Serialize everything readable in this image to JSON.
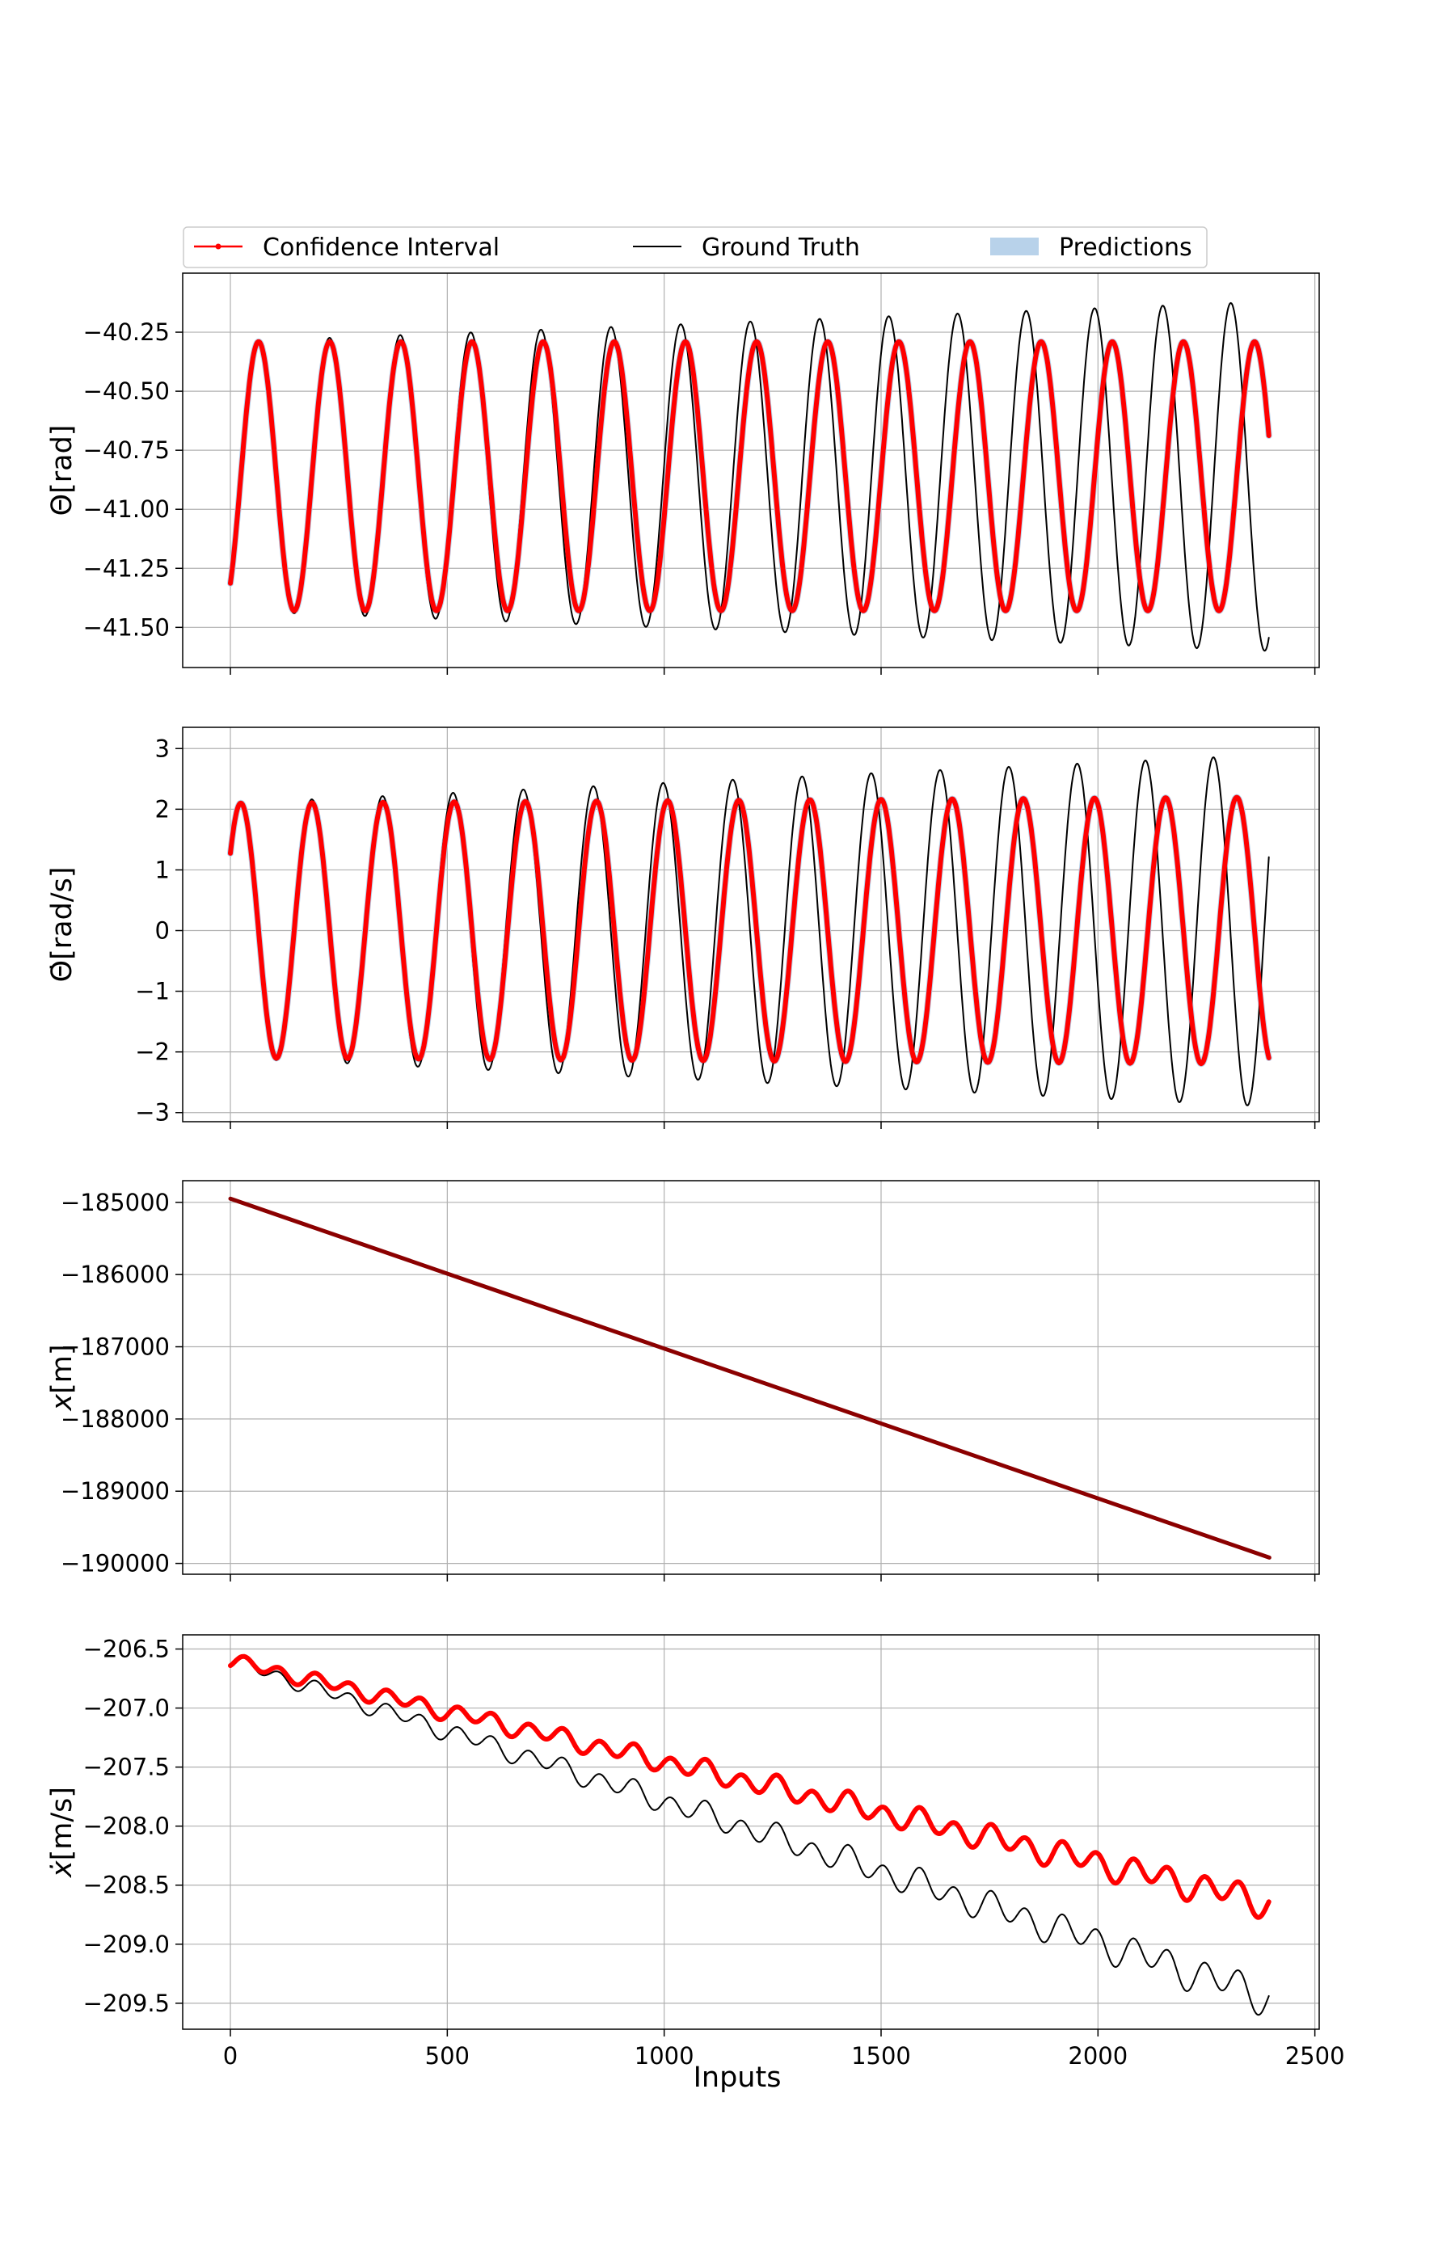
{
  "chart_data": {
    "type": "line",
    "legend": {
      "placement": "top",
      "entries": [
        {
          "label": "Confidence Interval",
          "color": "#ff0000"
        },
        {
          "label": "Ground Truth",
          "color": "#000000"
        },
        {
          "label": "Predictions",
          "color": "#b8d2ea"
        }
      ]
    },
    "xlabel": "Inputs",
    "xlim": [
      -110,
      2510
    ],
    "xticks": [
      0,
      500,
      1000,
      1500,
      2000,
      2500
    ],
    "xtick_labels": [
      "0",
      "500",
      "1000",
      "1500",
      "2000",
      "2500"
    ],
    "grid": true,
    "panels": [
      {
        "id": "theta",
        "ylabel_main": "Θ",
        "ylabel_unit": "[rad]",
        "ylim": [
          -41.67,
          -40.0
        ],
        "yticks": [
          -40.25,
          -40.5,
          -40.75,
          -41.0,
          -41.25,
          -41.5
        ],
        "ytick_labels": [
          "−40.25",
          "−40.50",
          "−40.75",
          "−41.00",
          "−41.25",
          "−41.50"
        ],
        "series": [
          {
            "role": "ground-truth",
            "color": "#000000",
            "model": "sine",
            "x_range": [
              0,
              2395
            ],
            "mean": -40.86,
            "period": 164,
            "phase": 24,
            "amp_start": 0.57,
            "amp_end": 0.74,
            "mean_drift": 0.0,
            "period_gt_end": 156
          },
          {
            "role": "confidence-interval",
            "color": "#ff0000",
            "model": "sine",
            "x_range": [
              0,
              2395
            ],
            "mean": -40.86,
            "period": 164,
            "phase": 24,
            "amp_start": 0.57,
            "amp_end": 0.57,
            "mean_drift": 0.0
          },
          {
            "role": "prediction",
            "color": "#b8d2ea",
            "model": "sine",
            "x_range": [
              0,
              2395
            ],
            "mean": -40.86,
            "period": 164,
            "phase": 24,
            "amp_start": 0.57,
            "amp_end": 0.57,
            "mean_drift": 0.0
          }
        ]
      },
      {
        "id": "theta-dot",
        "ylabel_main": "Θ̇",
        "ylabel_unit": "[rad/s]",
        "ylim": [
          -3.15,
          3.35
        ],
        "yticks": [
          3,
          2,
          1,
          0,
          -1,
          -2,
          -3
        ],
        "ytick_labels": [
          "3",
          "2",
          "1",
          "0",
          "−1",
          "−2",
          "−3"
        ],
        "series": [
          {
            "role": "ground-truth",
            "color": "#000000",
            "model": "sine",
            "x_range": [
              0,
              2395
            ],
            "mean": 0.0,
            "period": 164,
            "phase": -17,
            "amp_start": 2.1,
            "amp_end": 2.9,
            "mean_drift": 0.0,
            "period_gt_end": 156
          },
          {
            "role": "confidence-interval",
            "color": "#ff0000",
            "model": "sine",
            "x_range": [
              0,
              2395
            ],
            "mean": 0.0,
            "period": 164,
            "phase": -17,
            "amp_start": 2.1,
            "amp_end": 2.2,
            "mean_drift": 0.0
          },
          {
            "role": "prediction",
            "color": "#b8d2ea",
            "model": "sine",
            "x_range": [
              0,
              2395
            ],
            "mean": 0.0,
            "period": 164,
            "phase": -17,
            "amp_start": 2.1,
            "amp_end": 2.2,
            "mean_drift": 0.0
          }
        ]
      },
      {
        "id": "x",
        "ylabel_main": "x",
        "ylabel_unit": "[m]",
        "ylim": [
          -190150,
          -184700
        ],
        "yticks": [
          -185000,
          -186000,
          -187000,
          -188000,
          -189000,
          -190000
        ],
        "ytick_labels": [
          "−185000",
          "−186000",
          "−187000",
          "−188000",
          "−189000",
          "−190000"
        ],
        "series": [
          {
            "role": "ground-truth",
            "color": "#000000",
            "model": "line",
            "x": [
              0,
              2395
            ],
            "y": [
              -184950,
              -189920
            ]
          },
          {
            "role": "confidence-interval",
            "color": "#8b0000",
            "model": "line",
            "x": [
              0,
              2395
            ],
            "y": [
              -184950,
              -189920
            ]
          }
        ]
      },
      {
        "id": "x-dot",
        "ylabel_main": "ẋ",
        "ylabel_unit": "[m/s]",
        "ylim": [
          -209.72,
          -206.38
        ],
        "yticks": [
          -206.5,
          -207.0,
          -207.5,
          -208.0,
          -208.5,
          -209.0,
          -209.5
        ],
        "ytick_labels": [
          "−206.5",
          "−207.0",
          "−207.5",
          "−208.0",
          "−208.5",
          "−209.0",
          "−209.5"
        ],
        "series": [
          {
            "role": "ground-truth",
            "color": "#000000",
            "model": "drift-wave",
            "x_range": [
              0,
              2395
            ],
            "start": -206.6,
            "end": -209.45,
            "wave_amp_start": 0.06,
            "wave_amp_end": 0.16,
            "period": 82
          },
          {
            "role": "confidence-interval",
            "color": "#ff0000",
            "model": "drift-wave",
            "x_range": [
              0,
              2395
            ],
            "start": -206.6,
            "end": -208.65,
            "wave_amp_start": 0.06,
            "wave_amp_end": 0.13,
            "period": 82
          }
        ]
      }
    ]
  }
}
